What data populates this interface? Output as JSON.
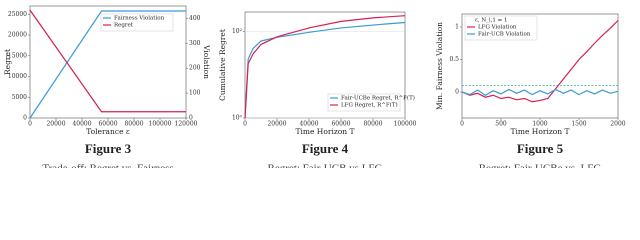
{
  "figures": [
    {
      "label": "Figure 3",
      "caption": "Trade-off: Regret vs. Fairness",
      "chart_data": {
        "type": "line",
        "xlabel": "Tolerance ε",
        "ylabel": "Regret",
        "y2label": "Violation",
        "x": [
          0,
          55000,
          120000
        ],
        "series": [
          {
            "name": "Fairness Violation",
            "color": "#3a9bd5",
            "values": [
              0,
              430,
              430
            ],
            "axis": "y2"
          },
          {
            "name": "Regret",
            "color": "#d6204f",
            "values": [
              26000,
              1500,
              1500
            ]
          }
        ],
        "xlim": [
          0,
          120000
        ],
        "xticks": [
          0,
          20000,
          40000,
          60000,
          80000,
          100000,
          120000
        ],
        "ylim": [
          0,
          27000
        ],
        "yticks": [
          0,
          5000,
          10000,
          15000,
          20000,
          25000
        ],
        "y2lim": [
          0,
          450
        ],
        "y2ticks": [
          0,
          100,
          200,
          300,
          400
        ],
        "grid": false,
        "legend": "center right"
      }
    },
    {
      "label": "Figure 4",
      "caption": "Regret: Fair-UCB vs LFG",
      "chart_data": {
        "type": "line",
        "xlabel": "Time Horizon T",
        "ylabel": "Cumulative Regret",
        "x": [
          0,
          2000,
          5000,
          10000,
          20000,
          40000,
          60000,
          80000,
          100000
        ],
        "series": [
          {
            "name": "Fair-UCBe Regret, R^F(T)",
            "color": "#3a9bd5",
            "values": [
              1,
              23,
              40,
              60,
              73,
              95,
              120,
              140,
              160
            ]
          },
          {
            "name": "LFG Regret, R^F(T)",
            "color": "#d6204f",
            "values": [
              1,
              18,
              30,
              50,
              75,
              120,
              170,
              205,
              230
            ]
          }
        ],
        "xlim": [
          0,
          100000
        ],
        "xticks": [
          0,
          20000,
          40000,
          60000,
          80000,
          100000
        ],
        "ylim": [
          1,
          280
        ],
        "log_y": true,
        "yticks": [
          {
            "value": 1,
            "label": "10⁰"
          },
          {
            "value": 100,
            "label": "10²"
          }
        ],
        "grid": true,
        "legend": "lower right"
      }
    },
    {
      "label": "Figure 5",
      "caption": "Regret: Fair-UCBe vs. LFG",
      "chart_data": {
        "type": "line",
        "xlabel": "Time Horizon T",
        "ylabel": "Min. Fairness Violation",
        "legend_title": "ε, N_i,1 = 1",
        "x": [
          0,
          100,
          200,
          300,
          400,
          500,
          600,
          700,
          800,
          900,
          1000,
          1100,
          1200,
          1300,
          1400,
          1500,
          1600,
          1700,
          1800,
          1900,
          2000
        ],
        "series": [
          {
            "name": "LFG Violation",
            "color": "#d6204f",
            "values": [
              0,
              -0.05,
              -0.02,
              -0.08,
              -0.05,
              -0.1,
              -0.08,
              -0.12,
              -0.1,
              -0.15,
              -0.13,
              -0.1,
              0.05,
              0.2,
              0.35,
              0.5,
              0.62,
              0.75,
              0.87,
              0.98,
              1.1
            ]
          },
          {
            "name": "Fair-UCB Violation",
            "color": "#3a9bd5",
            "values": [
              0,
              -0.04,
              0.03,
              -0.05,
              0.02,
              -0.03,
              0.04,
              -0.02,
              0.03,
              -0.04,
              0.02,
              -0.03,
              0.04,
              -0.02,
              0.03,
              -0.04,
              0.02,
              -0.03,
              0.03,
              -0.02,
              0.01
            ]
          }
        ],
        "reference_line": 0.1,
        "reference_color": "#2bb39a",
        "xlim": [
          0,
          2000
        ],
        "xticks": [
          0,
          500,
          1000,
          1500,
          2000
        ],
        "ylim": [
          -0.4,
          1.2
        ],
        "yticks": [
          0,
          0.5,
          1
        ],
        "grid": false,
        "legend": "upper left"
      }
    }
  ]
}
